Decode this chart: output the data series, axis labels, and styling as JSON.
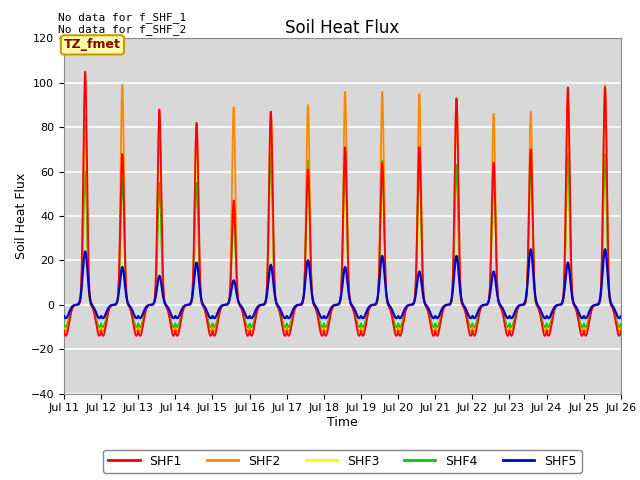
{
  "title": "Soil Heat Flux",
  "xlabel": "Time",
  "ylabel": "Soil Heat Flux",
  "ylim": [
    -40,
    120
  ],
  "xlim_days": [
    0,
    15
  ],
  "x_tick_labels": [
    "Jul 11",
    "Jul 12",
    "Jul 13",
    "Jul 14",
    "Jul 15",
    "Jul 16",
    "Jul 17",
    "Jul 18",
    "Jul 19",
    "Jul 20",
    "Jul 21",
    "Jul 22",
    "Jul 23",
    "Jul 24",
    "Jul 25",
    "Jul 26"
  ],
  "colors": {
    "SHF1": "#ff0000",
    "SHF2": "#ff8800",
    "SHF3": "#ffff00",
    "SHF4": "#00cc00",
    "SHF5": "#0000cc"
  },
  "annotation_text": "TZ_fmet",
  "annotation_bg": "#ffffaa",
  "annotation_border": "#cc9900",
  "no_data_text1": "No data for f_SHF_1",
  "no_data_text2": "No data for f_SHF_2",
  "plot_bg_color": "#d8d8d8",
  "fig_bg_color": "#ffffff",
  "grid_color": "#ffffff",
  "title_fontsize": 12,
  "label_fontsize": 9,
  "tick_fontsize": 8,
  "legend_fontsize": 9
}
